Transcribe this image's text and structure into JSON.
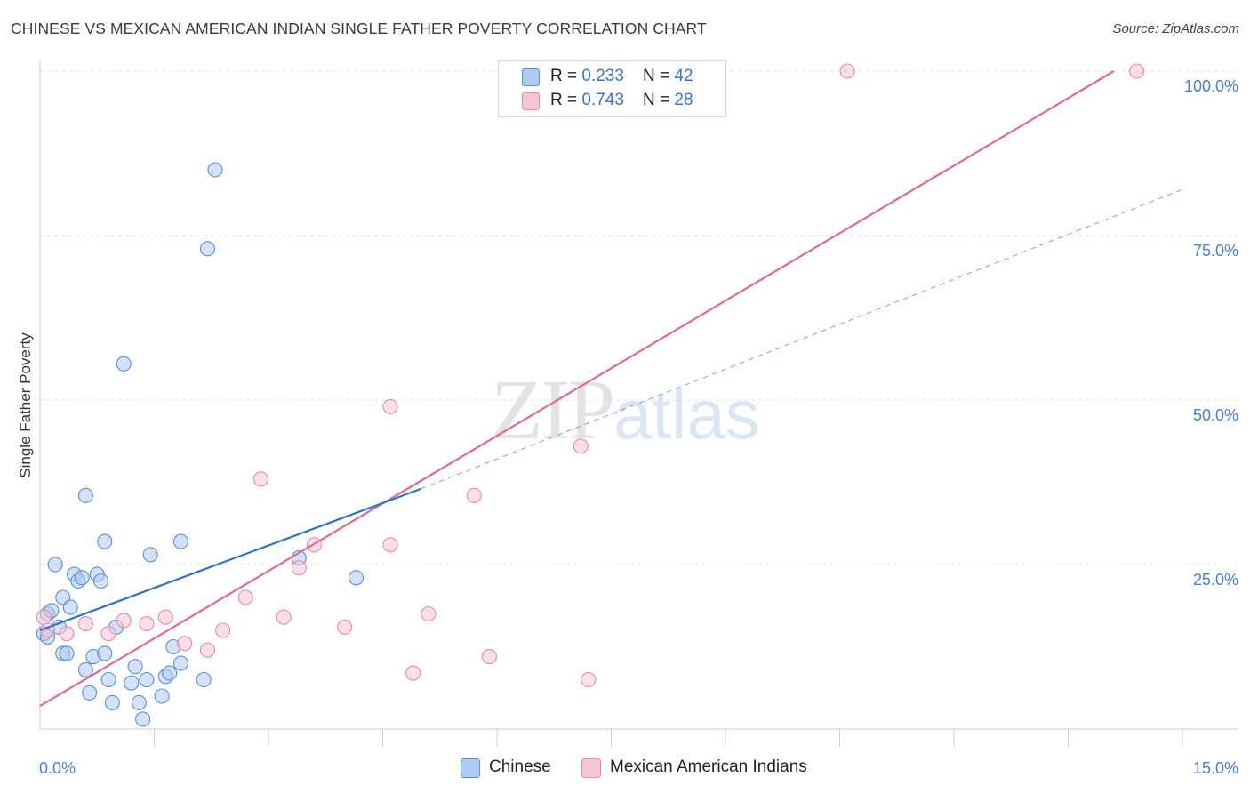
{
  "title": "CHINESE VS MEXICAN AMERICAN INDIAN SINGLE FATHER POVERTY CORRELATION CHART",
  "source": "Source: ZipAtlas.com",
  "watermark": {
    "part1": "ZIP",
    "part2": "atlas"
  },
  "colors": {
    "chinese_fill": "#aecbf2",
    "chinese_stroke": "#5a8fd6",
    "chinese_line": "#2f6fcd",
    "mexican_fill": "#f8c5d4",
    "mexican_stroke": "#e58aa8",
    "mexican_line": "#e06a93",
    "tick": "#4a7fc8",
    "grid": "#dddddd"
  },
  "legend": {
    "rows": [
      {
        "r_label": "R = ",
        "r_value": "0.233",
        "n_label": "N = ",
        "n_value": "42"
      },
      {
        "r_label": "R = ",
        "r_value": "0.743",
        "n_label": "N = ",
        "n_value": "28"
      }
    ]
  },
  "bottom_legend": {
    "series1": "Chinese",
    "series2": "Mexican American Indians"
  },
  "chart_data": {
    "type": "scatter",
    "title": "CHINESE VS MEXICAN AMERICAN INDIAN SINGLE FATHER POVERTY CORRELATION CHART",
    "xlabel": "",
    "ylabel": "Single Father Poverty",
    "xlim": [
      0,
      15
    ],
    "ylim": [
      0,
      100
    ],
    "x_tick_labels": [
      "0.0%",
      "15.0%"
    ],
    "y_ticks": [
      25,
      50,
      75,
      100
    ],
    "y_tick_labels": [
      "25.0%",
      "50.0%",
      "75.0%",
      "100.0%"
    ],
    "grid": "horizontal dashed",
    "legend_placement": "top-center",
    "series": [
      {
        "name": "Chinese",
        "R": 0.233,
        "N": 42,
        "trend": {
          "x": [
            0.0,
            5.0
          ],
          "y": [
            15.0,
            36.5
          ]
        },
        "trend_dashed": {
          "x": [
            5.0,
            15.0
          ],
          "y": [
            36.5,
            82.0
          ]
        },
        "points": [
          [
            0.05,
            14.5
          ],
          [
            0.1,
            17.5
          ],
          [
            0.15,
            18
          ],
          [
            0.2,
            25
          ],
          [
            0.25,
            15.5
          ],
          [
            0.3,
            11.5
          ],
          [
            0.3,
            20
          ],
          [
            0.35,
            11.5
          ],
          [
            0.4,
            18.5
          ],
          [
            0.45,
            23.5
          ],
          [
            0.5,
            22.5
          ],
          [
            0.55,
            23
          ],
          [
            0.6,
            35.5
          ],
          [
            0.6,
            9
          ],
          [
            0.65,
            5.5
          ],
          [
            0.7,
            11
          ],
          [
            0.75,
            23.5
          ],
          [
            0.8,
            22.5
          ],
          [
            0.85,
            28.5
          ],
          [
            0.85,
            11.5
          ],
          [
            0.9,
            7.5
          ],
          [
            0.95,
            4
          ],
          [
            1.0,
            15.5
          ],
          [
            1.1,
            55.5
          ],
          [
            1.2,
            7
          ],
          [
            1.25,
            9.5
          ],
          [
            1.3,
            4
          ],
          [
            1.35,
            1.5
          ],
          [
            1.4,
            7.5
          ],
          [
            1.45,
            26.5
          ],
          [
            1.6,
            5
          ],
          [
            1.65,
            8
          ],
          [
            1.7,
            8.5
          ],
          [
            1.75,
            12.5
          ],
          [
            1.85,
            28.5
          ],
          [
            1.85,
            10
          ],
          [
            2.15,
            7.5
          ],
          [
            2.2,
            73
          ],
          [
            2.3,
            85
          ],
          [
            3.4,
            26
          ],
          [
            4.15,
            23
          ],
          [
            0.1,
            14
          ]
        ]
      },
      {
        "name": "Mexican American Indians",
        "R": 0.743,
        "N": 28,
        "trend": {
          "x": [
            0.0,
            14.1
          ],
          "y": [
            3.5,
            100.0
          ]
        },
        "points": [
          [
            0.05,
            17
          ],
          [
            0.1,
            15
          ],
          [
            0.35,
            14.5
          ],
          [
            0.6,
            16
          ],
          [
            0.9,
            14.5
          ],
          [
            1.1,
            16.5
          ],
          [
            1.4,
            16
          ],
          [
            1.65,
            17
          ],
          [
            1.9,
            13
          ],
          [
            2.2,
            12
          ],
          [
            2.4,
            15
          ],
          [
            2.7,
            20
          ],
          [
            2.9,
            38
          ],
          [
            3.2,
            17
          ],
          [
            3.4,
            24.5
          ],
          [
            3.6,
            28
          ],
          [
            4.0,
            15.5
          ],
          [
            4.6,
            49
          ],
          [
            4.6,
            28
          ],
          [
            4.9,
            8.5
          ],
          [
            5.1,
            17.5
          ],
          [
            5.7,
            35.5
          ],
          [
            5.9,
            11
          ],
          [
            7.1,
            43
          ],
          [
            7.2,
            7.5
          ],
          [
            8.1,
            100
          ],
          [
            10.6,
            100
          ],
          [
            14.4,
            100
          ]
        ]
      }
    ]
  }
}
